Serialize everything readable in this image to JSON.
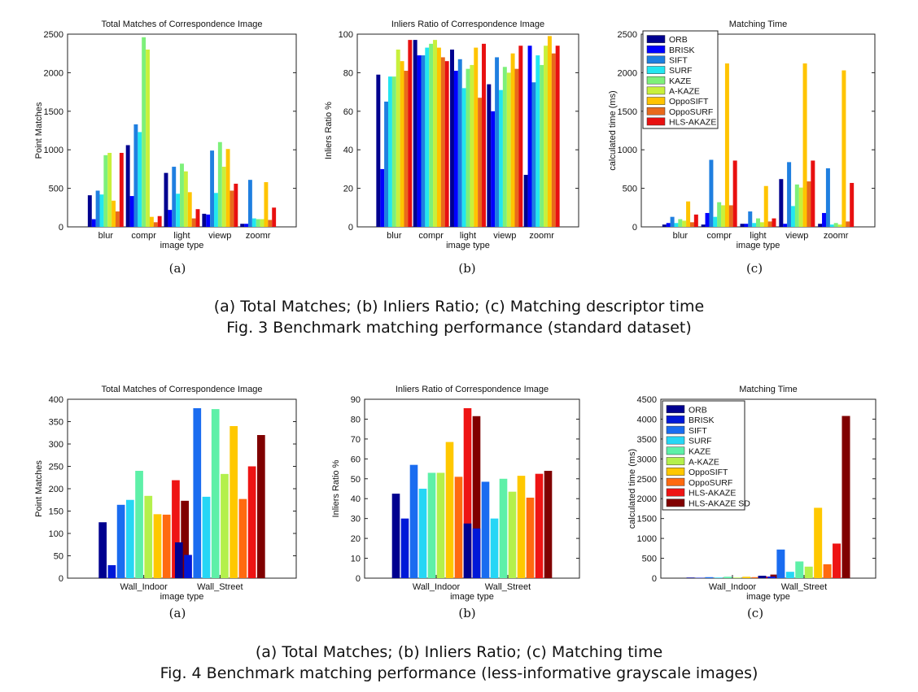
{
  "chart_data": [
    {
      "id": "f3a",
      "type": "bar",
      "title": "Total Matches of Correspondence Image",
      "xlabel": "image type",
      "ylabel": "Point Matches",
      "ylim": [
        0,
        2500
      ],
      "yticks": [
        0,
        500,
        1000,
        1500,
        2000,
        2500
      ],
      "categories": [
        "blur",
        "compr",
        "light",
        "viewp",
        "zoomr"
      ],
      "series": [
        {
          "name": "ORB",
          "values": [
            410,
            1060,
            700,
            170,
            40
          ]
        },
        {
          "name": "BRISK",
          "values": [
            100,
            400,
            220,
            160,
            40
          ]
        },
        {
          "name": "SIFT",
          "values": [
            470,
            1330,
            780,
            990,
            610
          ]
        },
        {
          "name": "SURF",
          "values": [
            420,
            1230,
            430,
            440,
            110
          ]
        },
        {
          "name": "KAZE",
          "values": [
            930,
            2460,
            820,
            1100,
            100
          ]
        },
        {
          "name": "A-KAZE",
          "values": [
            960,
            2300,
            720,
            780,
            100
          ]
        },
        {
          "name": "OppoSIFT",
          "values": [
            340,
            130,
            450,
            1010,
            580
          ]
        },
        {
          "name": "OppoSURF",
          "values": [
            200,
            60,
            110,
            470,
            90
          ]
        },
        {
          "name": "HLS-AKAZE",
          "values": [
            960,
            140,
            230,
            560,
            250
          ]
        }
      ],
      "sublabel": "(a)"
    },
    {
      "id": "f3b",
      "type": "bar",
      "title": "Inliers Ratio of Correspondence Image",
      "xlabel": "image type",
      "ylabel": "Inliers Ratio %",
      "ylim": [
        0,
        100
      ],
      "yticks": [
        0,
        20,
        40,
        60,
        80,
        100
      ],
      "categories": [
        "blur",
        "compr",
        "light",
        "viewp",
        "zoomr"
      ],
      "series": [
        {
          "name": "ORB",
          "values": [
            79,
            97,
            92,
            74,
            27
          ]
        },
        {
          "name": "BRISK",
          "values": [
            30,
            89,
            81,
            60,
            94
          ]
        },
        {
          "name": "SIFT",
          "values": [
            65,
            89,
            87,
            88,
            75
          ]
        },
        {
          "name": "SURF",
          "values": [
            78,
            93,
            72,
            71,
            89
          ]
        },
        {
          "name": "KAZE",
          "values": [
            78,
            95,
            82,
            83,
            84
          ]
        },
        {
          "name": "A-KAZE",
          "values": [
            92,
            97,
            84,
            80,
            94
          ]
        },
        {
          "name": "OppoSIFT",
          "values": [
            86,
            93,
            93,
            90,
            99
          ]
        },
        {
          "name": "OppoSURF",
          "values": [
            81,
            88,
            67,
            82,
            90
          ]
        },
        {
          "name": "HLS-AKAZE",
          "values": [
            97,
            86,
            95,
            94,
            94
          ]
        }
      ],
      "sublabel": "(b)"
    },
    {
      "id": "f3c",
      "type": "bar",
      "title": "Matching Time",
      "xlabel": "image type",
      "ylabel": "calculated time (ms)",
      "ylim": [
        0,
        2500
      ],
      "yticks": [
        0,
        500,
        1000,
        1500,
        2000,
        2500
      ],
      "categories": [
        "blur",
        "compr",
        "light",
        "viewp",
        "zoomr"
      ],
      "series": [
        {
          "name": "ORB",
          "values": [
            30,
            30,
            40,
            620,
            40
          ]
        },
        {
          "name": "BRISK",
          "values": [
            50,
            180,
            40,
            40,
            180
          ]
        },
        {
          "name": "SIFT",
          "values": [
            130,
            870,
            200,
            840,
            760
          ]
        },
        {
          "name": "SURF",
          "values": [
            50,
            130,
            50,
            270,
            30
          ]
        },
        {
          "name": "KAZE",
          "values": [
            100,
            320,
            110,
            550,
            50
          ]
        },
        {
          "name": "A-KAZE",
          "values": [
            80,
            280,
            60,
            510,
            30
          ]
        },
        {
          "name": "OppoSIFT",
          "values": [
            330,
            2120,
            530,
            2120,
            2030
          ]
        },
        {
          "name": "OppoSURF",
          "values": [
            60,
            280,
            70,
            590,
            70
          ]
        },
        {
          "name": "HLS-AKAZE",
          "values": [
            160,
            860,
            110,
            860,
            570
          ]
        }
      ],
      "legend": "top-left",
      "sublabel": "(c)"
    },
    {
      "id": "f4a",
      "type": "bar",
      "title": "Total Matches of Correspondence Image",
      "xlabel": "image type",
      "ylabel": "Point Matches",
      "ylim": [
        0,
        400
      ],
      "yticks": [
        0,
        50,
        100,
        150,
        200,
        250,
        300,
        350,
        400
      ],
      "categories": [
        "Wall_Indoor",
        "Wall_Street"
      ],
      "series": [
        {
          "name": "ORB",
          "values": [
            125,
            80
          ]
        },
        {
          "name": "BRISK",
          "values": [
            29,
            52
          ]
        },
        {
          "name": "SIFT",
          "values": [
            164,
            380
          ]
        },
        {
          "name": "SURF",
          "values": [
            175,
            182
          ]
        },
        {
          "name": "KAZE",
          "values": [
            240,
            378
          ]
        },
        {
          "name": "A-KAZE",
          "values": [
            184,
            233
          ]
        },
        {
          "name": "OppoSIFT",
          "values": [
            143,
            340
          ]
        },
        {
          "name": "OppoSURF",
          "values": [
            142,
            177
          ]
        },
        {
          "name": "HLS-AKAZE",
          "values": [
            219,
            250
          ]
        },
        {
          "name": "HLS-AKAZE SD",
          "values": [
            173,
            320
          ]
        }
      ],
      "sublabel": "(a)"
    },
    {
      "id": "f4b",
      "type": "bar",
      "title": "Inliers Ratio of Correspondence Image",
      "xlabel": "image type",
      "ylabel": "Inliers Ratio %",
      "ylim": [
        0,
        90
      ],
      "yticks": [
        0,
        10,
        20,
        30,
        40,
        50,
        60,
        70,
        80,
        90
      ],
      "categories": [
        "Wall_Indoor",
        "Wall_Street"
      ],
      "series": [
        {
          "name": "ORB",
          "values": [
            42.5,
            27.5
          ]
        },
        {
          "name": "BRISK",
          "values": [
            30,
            25
          ]
        },
        {
          "name": "SIFT",
          "values": [
            57,
            48.5
          ]
        },
        {
          "name": "SURF",
          "values": [
            45,
            30
          ]
        },
        {
          "name": "KAZE",
          "values": [
            53,
            50
          ]
        },
        {
          "name": "A-KAZE",
          "values": [
            53,
            43.5
          ]
        },
        {
          "name": "OppoSIFT",
          "values": [
            68.5,
            51.5
          ]
        },
        {
          "name": "OppoSURF",
          "values": [
            51,
            40.5
          ]
        },
        {
          "name": "HLS-AKAZE",
          "values": [
            85.5,
            52.5
          ]
        },
        {
          "name": "HLS-AKAZE SD",
          "values": [
            81.5,
            54
          ]
        }
      ],
      "sublabel": "(b)"
    },
    {
      "id": "f4c",
      "type": "bar",
      "title": "Matching Time",
      "xlabel": "image type",
      "ylabel": "calculated time (ms)",
      "ylim": [
        0,
        4500
      ],
      "yticks": [
        0,
        500,
        1000,
        1500,
        2000,
        2500,
        3000,
        3500,
        4000,
        4500
      ],
      "categories": [
        "Wall_Indoor",
        "Wall_Street"
      ],
      "series": [
        {
          "name": "ORB",
          "values": [
            15,
            60
          ]
        },
        {
          "name": "BRISK",
          "values": [
            10,
            40
          ]
        },
        {
          "name": "SIFT",
          "values": [
            25,
            720
          ]
        },
        {
          "name": "SURF",
          "values": [
            15,
            160
          ]
        },
        {
          "name": "KAZE",
          "values": [
            35,
            420
          ]
        },
        {
          "name": "A-KAZE",
          "values": [
            15,
            290
          ]
        },
        {
          "name": "OppoSIFT",
          "values": [
            35,
            1770
          ]
        },
        {
          "name": "OppoSURF",
          "values": [
            25,
            350
          ]
        },
        {
          "name": "HLS-AKAZE",
          "values": [
            40,
            870
          ]
        },
        {
          "name": "HLS-AKAZE SD",
          "values": [
            90,
            4080
          ]
        }
      ],
      "legend": "top-left",
      "sublabel": "(c)"
    }
  ],
  "colors9": [
    "#00008f",
    "#0000ff",
    "#1f7fe0",
    "#22e6f0",
    "#7df07a",
    "#c8f03c",
    "#ffc400",
    "#e86a1c",
    "#e81010",
    "#800000"
  ],
  "colors10": [
    "#00008f",
    "#0018d8",
    "#1a6cf0",
    "#26d6f5",
    "#5ef0a8",
    "#b4f04c",
    "#ffc800",
    "#ff6a10",
    "#ee1414",
    "#800000"
  ],
  "captions": {
    "fig3_line1": "(a) Total Matches; (b) Inliers Ratio; (c) Matching descriptor time",
    "fig3_line2": "Fig. 3 Benchmark matching performance (standard dataset)",
    "fig4_line1": "(a) Total Matches; (b) Inliers Ratio; (c) Matching time",
    "fig4_line2": "Fig. 4 Benchmark matching performance (less-informative grayscale images)"
  }
}
